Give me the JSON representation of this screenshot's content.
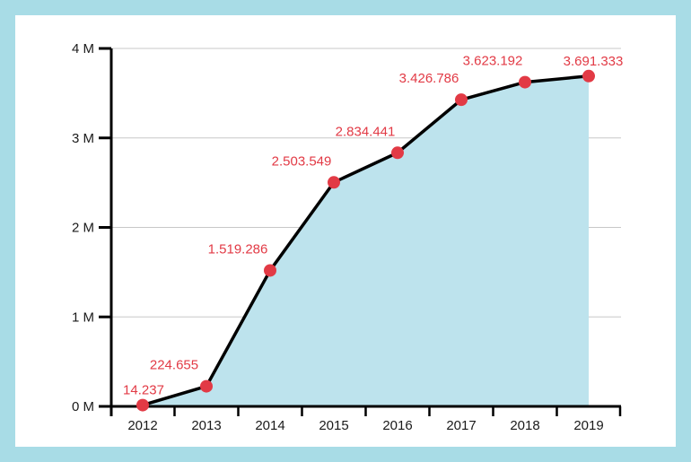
{
  "chart_data": {
    "type": "area",
    "categories": [
      "2012",
      "2013",
      "2014",
      "2015",
      "2016",
      "2017",
      "2018",
      "2019"
    ],
    "values": [
      14237,
      224655,
      1519286,
      2503549,
      2834441,
      3426786,
      3623192,
      3691333
    ],
    "data_labels": [
      "14.237",
      "224.655",
      "1.519.286",
      "2.503.549",
      "2.834.441",
      "3.426.786",
      "3.623.192",
      "3.691.333"
    ],
    "y_ticks": [
      {
        "value": 0,
        "label": "0 M"
      },
      {
        "value": 1000000,
        "label": "1 M"
      },
      {
        "value": 2000000,
        "label": "2 M"
      },
      {
        "value": 3000000,
        "label": "3 M"
      },
      {
        "value": 4000000,
        "label": "4 M"
      }
    ],
    "ylim": [
      0,
      4000000
    ],
    "title": "",
    "xlabel": "",
    "ylabel": "",
    "grid": true,
    "colors": {
      "background": "#a8dce6",
      "panel": "#ffffff",
      "area_fill": "#bde3ed",
      "line": "#000000",
      "marker": "#e23a45",
      "data_label": "#e23a45",
      "grid": "#c8c8c8",
      "axis": "#000000"
    }
  }
}
